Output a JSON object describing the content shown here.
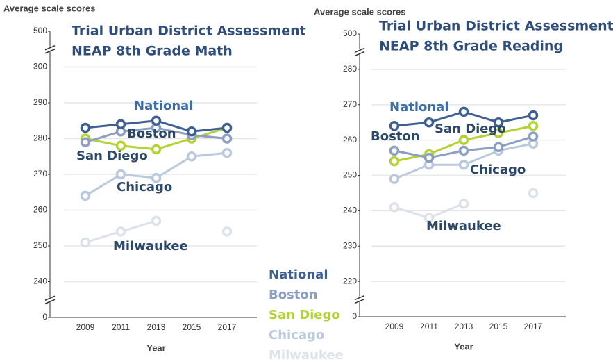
{
  "chart_data": [
    {
      "type": "line",
      "title": [
        "Trial Urban District Assessment",
        "NEAP 8th Grade Math"
      ],
      "y_label": "Average scale scores",
      "x_label": "Year",
      "categories": [
        "2009",
        "2011",
        "2013",
        "2015",
        "2017"
      ],
      "ylim": [
        0,
        500
      ],
      "yticks": [
        0,
        240,
        250,
        260,
        270,
        280,
        290,
        300,
        500
      ],
      "y_axis_breaks": true,
      "grid": true,
      "series": [
        {
          "name": "National",
          "color": "#3d5f92",
          "values": [
            283,
            284,
            285,
            282,
            283
          ]
        },
        {
          "name": "Boston",
          "color": "#8c9fc2",
          "values": [
            279,
            282,
            283,
            281,
            280
          ]
        },
        {
          "name": "San Diego",
          "color": "#b3d334",
          "values": [
            280,
            278,
            277,
            280,
            283
          ]
        },
        {
          "name": "Chicago",
          "color": "#bac9dd",
          "values": [
            264,
            270,
            269,
            275,
            276
          ]
        },
        {
          "name": "Milwaukee",
          "color": "#dce1ea",
          "values": [
            251,
            254,
            257,
            null,
            254
          ]
        }
      ],
      "annotations": [
        "National",
        "Boston",
        "San Diego",
        "Chicago",
        "Milwaukee"
      ]
    },
    {
      "type": "line",
      "title": [
        "Trial Urban District Assessment",
        "NEAP 8th Grade Reading"
      ],
      "y_label": "Average scale scores",
      "x_label": "Year",
      "categories": [
        "2009",
        "2011",
        "2013",
        "2015",
        "2017"
      ],
      "ylim": [
        0,
        500
      ],
      "yticks": [
        0,
        220,
        230,
        240,
        250,
        260,
        270,
        280,
        500
      ],
      "y_axis_breaks": true,
      "grid": true,
      "series": [
        {
          "name": "National",
          "color": "#3d5f92",
          "values": [
            264,
            265,
            268,
            265,
            267
          ]
        },
        {
          "name": "Boston",
          "color": "#8c9fc2",
          "values": [
            257,
            255,
            257,
            258,
            261
          ]
        },
        {
          "name": "San Diego",
          "color": "#b3d334",
          "values": [
            254,
            256,
            260,
            262,
            264
          ]
        },
        {
          "name": "Chicago",
          "color": "#bac9dd",
          "values": [
            249,
            253,
            253,
            257,
            259
          ]
        },
        {
          "name": "Milwaukee",
          "color": "#dce1ea",
          "values": [
            241,
            238,
            242,
            null,
            245
          ]
        }
      ],
      "annotations": [
        "National",
        "Boston",
        "San Diego",
        "Chicago",
        "Milwaukee"
      ]
    }
  ]
}
